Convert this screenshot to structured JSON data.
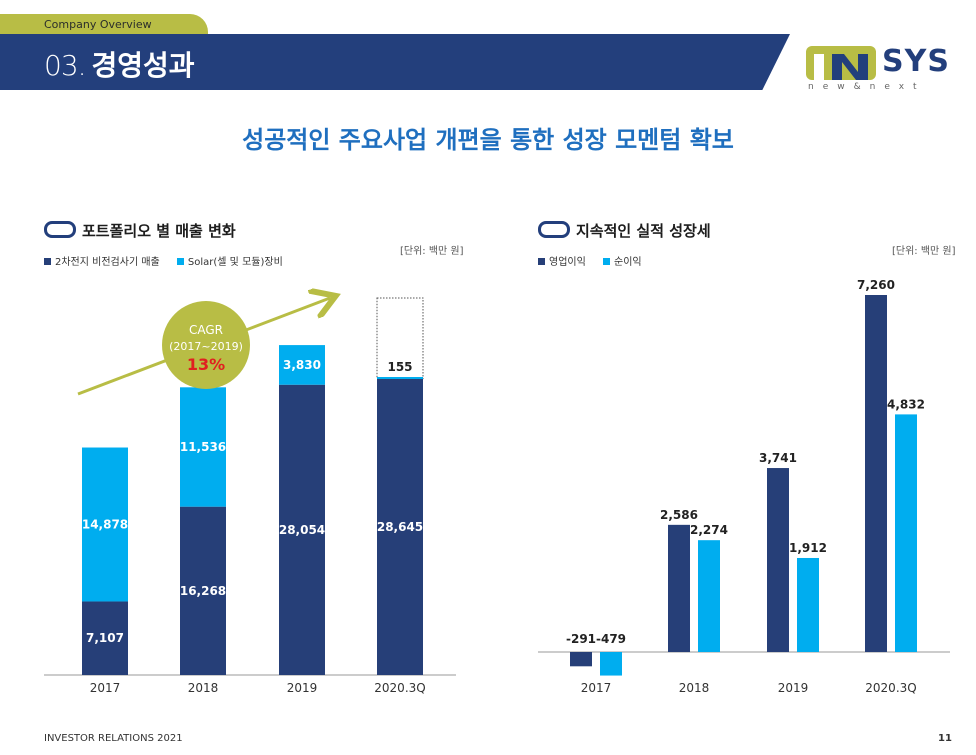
{
  "header": {
    "section": "Company Overview",
    "number": "03.",
    "title": "경영성과"
  },
  "logo": {
    "text": "SYS",
    "tagline": "new&next"
  },
  "headline": "성공적인 주요사업 개편을 통한 성장 모멘텀 확보",
  "colors": {
    "navy": "#263f78",
    "cyan": "#00adef",
    "olive": "#b8bd45"
  },
  "left_panel": {
    "title": "포트폴리오 별 매출 변화",
    "unit": "[단위: 백만 원]",
    "cagr": {
      "label": "CAGR",
      "period": "(2017~2019)",
      "value": "13%"
    }
  },
  "right_panel": {
    "title": "지속적인 실적 성장세",
    "unit": "[단위: 백만 원]"
  },
  "chart_data": [
    {
      "type": "bar",
      "stacked": true,
      "categories": [
        "2017",
        "2018",
        "2019",
        "2020.3Q"
      ],
      "series": [
        {
          "name": "2차전지 비전검사기 매출",
          "values": [
            7107,
            16268,
            28054,
            28645
          ],
          "labels": [
            "7,107",
            "16,268",
            "28,054",
            "28,645"
          ]
        },
        {
          "name": "Solar(셀 및 모듈)장비",
          "values": [
            14878,
            11536,
            3830,
            155
          ],
          "labels": [
            "14,878",
            "11,536",
            "3,830",
            "155"
          ]
        }
      ]
    },
    {
      "type": "bar",
      "categories": [
        "2017",
        "2018",
        "2019",
        "2020.3Q"
      ],
      "series": [
        {
          "name": "영업이익",
          "values": [
            -291,
            2586,
            3741,
            7260
          ],
          "labels": [
            "-291",
            "2,586",
            "3,741",
            "7,260"
          ]
        },
        {
          "name": "순이익",
          "values": [
            -479,
            2274,
            1912,
            4832
          ],
          "labels": [
            "-479",
            "2,274",
            "1,912",
            "4,832"
          ]
        }
      ]
    }
  ],
  "footer": {
    "left": "INVESTOR RELATIONS 2021",
    "page": "11"
  }
}
